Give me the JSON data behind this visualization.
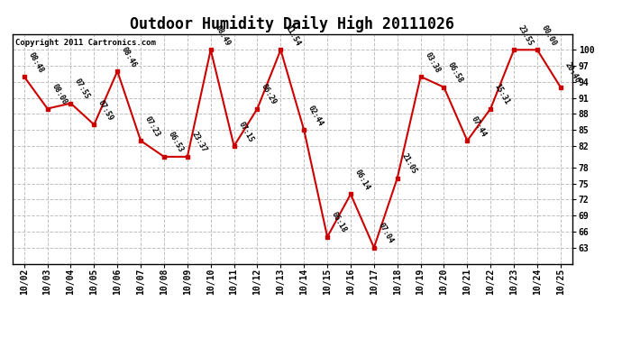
{
  "title": "Outdoor Humidity Daily High 20111026",
  "copyright": "Copyright 2011 Cartronics.com",
  "x_labels": [
    "10/02",
    "10/03",
    "10/04",
    "10/05",
    "10/06",
    "10/07",
    "10/08",
    "10/09",
    "10/10",
    "10/11",
    "10/12",
    "10/13",
    "10/14",
    "10/15",
    "10/16",
    "10/17",
    "10/18",
    "10/19",
    "10/20",
    "10/21",
    "10/22",
    "10/23",
    "10/24",
    "10/25"
  ],
  "y_values": [
    95,
    89,
    90,
    86,
    96,
    83,
    80,
    80,
    100,
    82,
    89,
    100,
    85,
    65,
    73,
    63,
    76,
    95,
    93,
    83,
    89,
    100,
    100,
    93
  ],
  "time_labels": [
    "08:48",
    "08:00",
    "07:55",
    "07:59",
    "08:46",
    "07:23",
    "06:53",
    "23:37",
    "08:49",
    "07:15",
    "06:29",
    "11:54",
    "02:44",
    "06:18",
    "06:14",
    "07:04",
    "21:05",
    "03:38",
    "06:58",
    "07:44",
    "15:31",
    "23:55",
    "00:00",
    "20:46"
  ],
  "line_color": "#cc0000",
  "marker_color": "#cc0000",
  "bg_color": "#ffffff",
  "grid_color": "#c0c0c0",
  "title_fontsize": 12,
  "ylim": [
    60,
    103
  ],
  "yticks": [
    63,
    66,
    69,
    72,
    75,
    78,
    82,
    85,
    88,
    91,
    94,
    97,
    100
  ]
}
